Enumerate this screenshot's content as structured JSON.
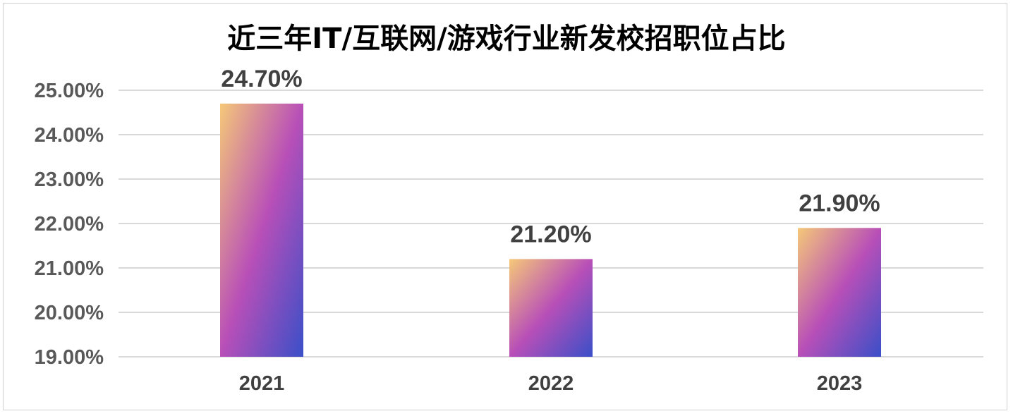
{
  "chart_data": {
    "type": "bar",
    "title": "近三年IT/互联网/游戏行业新发校招职位占比",
    "categories": [
      "2021",
      "2022",
      "2023"
    ],
    "values": [
      24.7,
      21.2,
      21.9
    ],
    "data_labels": [
      "24.70%",
      "21.20%",
      "21.90%"
    ],
    "y_ticks": [
      "19.00%",
      "20.00%",
      "21.00%",
      "22.00%",
      "23.00%",
      "24.00%",
      "25.00%"
    ],
    "ylim": [
      19,
      25
    ],
    "grid": true,
    "legend": "none",
    "colors": {
      "gradient_start": "#f5c878",
      "gradient_mid": "#b84fb8",
      "gradient_end": "#3a4fc8",
      "grid": "#d9d9d9",
      "tick_label": "#595959",
      "data_label": "#404040",
      "title": "#000000"
    }
  }
}
